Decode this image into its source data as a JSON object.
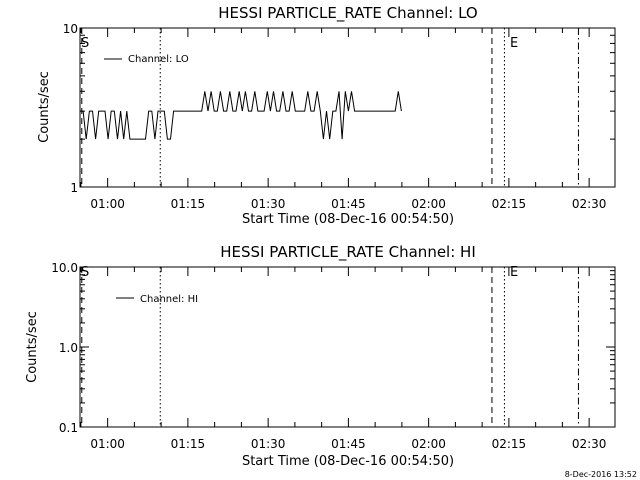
{
  "chart_data": [
    {
      "type": "line",
      "title": "HESSI PARTICLE_RATE Channel: LO",
      "xlabel": "Start Time (08-Dec-16 00:54:50)",
      "ylabel": "Counts/sec",
      "yscale": "log",
      "ylim": [
        1,
        10
      ],
      "ytick_labels": [
        "1",
        "10"
      ],
      "xlim": [
        "00:54:50",
        "02:34:50"
      ],
      "xtick_labels": [
        "01:00",
        "01:15",
        "01:30",
        "01:45",
        "02:00",
        "02:15",
        "02:30"
      ],
      "legend": [
        "Channel: LO"
      ],
      "legend_position": "top-left",
      "marker_labels": [
        "S",
        "E"
      ],
      "series": [
        {
          "name": "Channel: LO",
          "x": [
            "00:54:50",
            "00:55:25",
            "00:56:00",
            "00:56:35",
            "00:57:10",
            "00:57:45",
            "00:58:20",
            "00:58:55",
            "00:59:30",
            "01:00:05",
            "01:00:40",
            "01:01:15",
            "01:01:50",
            "01:02:25",
            "01:03:00",
            "01:03:35",
            "01:04:10",
            "01:04:45",
            "01:05:20",
            "01:05:55",
            "01:06:30",
            "01:07:05",
            "01:07:40",
            "01:08:15",
            "01:08:50",
            "01:09:25",
            "01:10:00",
            "01:10:35",
            "01:11:10",
            "01:11:45",
            "01:12:20",
            "01:12:55",
            "01:13:30",
            "01:14:05",
            "01:14:40",
            "01:15:15",
            "01:15:50",
            "01:16:25",
            "01:17:00",
            "01:17:35",
            "01:18:10",
            "01:18:45",
            "01:19:20",
            "01:19:55",
            "01:20:30",
            "01:21:05",
            "01:21:40",
            "01:22:15",
            "01:22:50",
            "01:23:25",
            "01:24:00",
            "01:24:35",
            "01:25:10",
            "01:25:45",
            "01:26:20",
            "01:26:55",
            "01:27:30",
            "01:28:05",
            "01:28:40",
            "01:29:15",
            "01:29:50",
            "01:30:25",
            "01:31:00",
            "01:31:35",
            "01:32:10",
            "01:32:45",
            "01:33:20",
            "01:33:55",
            "01:34:30",
            "01:35:05",
            "01:35:40",
            "01:36:15",
            "01:36:50",
            "01:37:25",
            "01:38:00",
            "01:38:35",
            "01:39:10",
            "01:39:45",
            "01:40:20",
            "01:40:55",
            "01:41:30",
            "01:42:05",
            "01:42:40",
            "01:43:15",
            "01:43:50",
            "01:44:25",
            "01:45:00",
            "01:45:35",
            "01:46:10",
            "01:46:45",
            "01:47:20",
            "01:47:55",
            "01:48:30",
            "01:49:05",
            "01:49:40",
            "01:50:15",
            "01:50:50",
            "01:51:25",
            "01:52:00",
            "01:52:35",
            "01:53:10",
            "01:53:45",
            "01:54:20",
            "01:54:55"
          ],
          "values": [
            3,
            3,
            2,
            3,
            3,
            2,
            3,
            3,
            3,
            2,
            3,
            3,
            2,
            3,
            2,
            3,
            2,
            2,
            2,
            2,
            2,
            2,
            3,
            3,
            2,
            3,
            3,
            3,
            2,
            2,
            3,
            3,
            3,
            3,
            3,
            3,
            3,
            3,
            3,
            3,
            4,
            3,
            4,
            3,
            3,
            4,
            3,
            3,
            4,
            3,
            3,
            4,
            3,
            4,
            3,
            3,
            4,
            3,
            3,
            3,
            4,
            3,
            4,
            3,
            3,
            4,
            3,
            3,
            4,
            3,
            3,
            3,
            3,
            4,
            3,
            3,
            4,
            3,
            2,
            3,
            2,
            3,
            3,
            4,
            2,
            4,
            3,
            4,
            3,
            3,
            3,
            3,
            3,
            3,
            3,
            3,
            3,
            3,
            3,
            3,
            3,
            3,
            4,
            3
          ]
        }
      ],
      "vlines": [
        {
          "style": "dashed",
          "x": "00:55:10"
        },
        {
          "style": "dotted",
          "x": "01:09:50"
        },
        {
          "style": "dashed",
          "x": "02:11:50"
        },
        {
          "style": "dotted",
          "x": "02:14:10"
        },
        {
          "style": "dashdot",
          "x": "02:28:00"
        }
      ]
    },
    {
      "type": "line",
      "title": "HESSI PARTICLE_RATE Channel: HI",
      "xlabel": "Start Time (08-Dec-16 00:54:50)",
      "ylabel": "Counts/sec",
      "yscale": "log",
      "ylim": [
        0.1,
        10
      ],
      "ytick_labels": [
        "0.1",
        "1.0",
        "10.0"
      ],
      "xlim": [
        "00:54:50",
        "02:34:50"
      ],
      "xtick_labels": [
        "01:00",
        "01:15",
        "01:30",
        "01:45",
        "02:00",
        "02:15",
        "02:30"
      ],
      "legend": [
        "Channel: HI"
      ],
      "legend_position": "top-left",
      "marker_labels": [
        "S",
        "E"
      ],
      "series": [],
      "vlines": [
        {
          "style": "dashed",
          "x": "00:55:10"
        },
        {
          "style": "dotted",
          "x": "01:09:50"
        },
        {
          "style": "dashed",
          "x": "02:11:50"
        },
        {
          "style": "dotted",
          "x": "02:14:10"
        },
        {
          "style": "dashdot",
          "x": "02:28:00"
        }
      ]
    }
  ],
  "footer": {
    "timestamp": "8-Dec-2016 13:52"
  }
}
